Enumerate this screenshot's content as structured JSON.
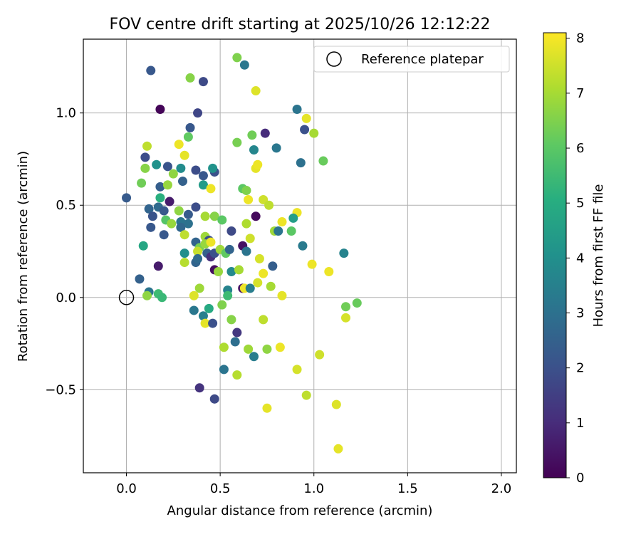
{
  "chart_data": {
    "type": "scatter",
    "title": "FOV centre drift starting at 2025/10/26 12:12:22",
    "xlabel": "Angular distance from reference (arcmin)",
    "ylabel": "Rotation from reference (arcmin)",
    "xlim": [
      -0.23,
      2.08
    ],
    "ylim": [
      -0.95,
      1.4
    ],
    "xticks": [
      0.0,
      0.5,
      1.0,
      1.5,
      2.0
    ],
    "xtick_labels": [
      "0.0",
      "0.5",
      "1.0",
      "1.5",
      "2.0"
    ],
    "yticks": [
      -0.5,
      0.0,
      0.5,
      1.0
    ],
    "ytick_labels": [
      "−0.5",
      "0.0",
      "0.5",
      "1.0"
    ],
    "grid": true,
    "legend": {
      "position": "top-right",
      "entries": [
        "Reference platepar"
      ]
    },
    "reference_point": {
      "x": 0.0,
      "y": 0.0
    },
    "colorbar": {
      "label": "Hours from first FF file",
      "min": 0,
      "max": 8.1,
      "ticks": [
        0,
        1,
        2,
        3,
        4,
        5,
        6,
        7,
        8
      ],
      "tick_labels": [
        "0",
        "1",
        "2",
        "3",
        "4",
        "5",
        "6",
        "7",
        "8"
      ],
      "colormap": "viridis"
    },
    "points": [
      {
        "x": 0.0,
        "y": 0.54,
        "h": 2.3
      },
      {
        "x": 0.13,
        "y": 1.23,
        "h": 2.2
      },
      {
        "x": 0.18,
        "y": 1.02,
        "h": 0.1
      },
      {
        "x": 0.41,
        "y": 1.17,
        "h": 1.8
      },
      {
        "x": 0.34,
        "y": 1.19,
        "h": 6.6
      },
      {
        "x": 0.59,
        "y": 1.3,
        "h": 6.5
      },
      {
        "x": 0.63,
        "y": 1.26,
        "h": 3.2
      },
      {
        "x": 0.69,
        "y": 1.12,
        "h": 7.7
      },
      {
        "x": 0.38,
        "y": 1.0,
        "h": 1.7
      },
      {
        "x": 0.91,
        "y": 1.02,
        "h": 3.1
      },
      {
        "x": 0.96,
        "y": 0.97,
        "h": 7.8
      },
      {
        "x": 0.95,
        "y": 0.91,
        "h": 2.0
      },
      {
        "x": 1.0,
        "y": 0.89,
        "h": 7.0
      },
      {
        "x": 0.74,
        "y": 0.89,
        "h": 1.0
      },
      {
        "x": 0.67,
        "y": 0.88,
        "h": 6.3
      },
      {
        "x": 0.34,
        "y": 0.92,
        "h": 2.2
      },
      {
        "x": 0.33,
        "y": 0.87,
        "h": 6.1
      },
      {
        "x": 0.59,
        "y": 0.84,
        "h": 6.4
      },
      {
        "x": 0.11,
        "y": 0.82,
        "h": 7.3
      },
      {
        "x": 0.28,
        "y": 0.83,
        "h": 7.9
      },
      {
        "x": 0.1,
        "y": 0.76,
        "h": 1.9
      },
      {
        "x": 0.31,
        "y": 0.77,
        "h": 7.8
      },
      {
        "x": 0.68,
        "y": 0.8,
        "h": 3.7
      },
      {
        "x": 0.8,
        "y": 0.81,
        "h": 3.2
      },
      {
        "x": 0.93,
        "y": 0.73,
        "h": 3.0
      },
      {
        "x": 1.05,
        "y": 0.74,
        "h": 6.2
      },
      {
        "x": 0.1,
        "y": 0.7,
        "h": 6.6
      },
      {
        "x": 0.16,
        "y": 0.72,
        "h": 4.1
      },
      {
        "x": 0.22,
        "y": 0.71,
        "h": 2.1
      },
      {
        "x": 0.29,
        "y": 0.7,
        "h": 3.9
      },
      {
        "x": 0.37,
        "y": 0.69,
        "h": 1.9
      },
      {
        "x": 0.47,
        "y": 0.68,
        "h": 2.0
      },
      {
        "x": 0.46,
        "y": 0.7,
        "h": 4.1
      },
      {
        "x": 0.25,
        "y": 0.67,
        "h": 6.7
      },
      {
        "x": 0.41,
        "y": 0.66,
        "h": 2.2
      },
      {
        "x": 0.69,
        "y": 0.7,
        "h": 7.8
      },
      {
        "x": 0.7,
        "y": 0.72,
        "h": 7.9
      },
      {
        "x": 0.08,
        "y": 0.62,
        "h": 6.3
      },
      {
        "x": 0.18,
        "y": 0.6,
        "h": 2.4
      },
      {
        "x": 0.22,
        "y": 0.61,
        "h": 6.8
      },
      {
        "x": 0.3,
        "y": 0.63,
        "h": 2.5
      },
      {
        "x": 0.41,
        "y": 0.61,
        "h": 4.4
      },
      {
        "x": 0.45,
        "y": 0.59,
        "h": 7.9
      },
      {
        "x": 0.62,
        "y": 0.59,
        "h": 6.0
      },
      {
        "x": 0.64,
        "y": 0.58,
        "h": 6.5
      },
      {
        "x": 0.18,
        "y": 0.54,
        "h": 5.1
      },
      {
        "x": 0.23,
        "y": 0.52,
        "h": 0.6
      },
      {
        "x": 0.65,
        "y": 0.53,
        "h": 7.9
      },
      {
        "x": 0.73,
        "y": 0.53,
        "h": 7.5
      },
      {
        "x": 0.76,
        "y": 0.5,
        "h": 7.3
      },
      {
        "x": 0.12,
        "y": 0.48,
        "h": 2.6
      },
      {
        "x": 0.17,
        "y": 0.49,
        "h": 2.8
      },
      {
        "x": 0.2,
        "y": 0.47,
        "h": 2.2
      },
      {
        "x": 0.28,
        "y": 0.47,
        "h": 6.7
      },
      {
        "x": 0.37,
        "y": 0.49,
        "h": 1.9
      },
      {
        "x": 0.33,
        "y": 0.45,
        "h": 2.3
      },
      {
        "x": 0.42,
        "y": 0.44,
        "h": 7.0
      },
      {
        "x": 0.47,
        "y": 0.44,
        "h": 6.6
      },
      {
        "x": 0.51,
        "y": 0.42,
        "h": 6.0
      },
      {
        "x": 0.69,
        "y": 0.44,
        "h": 0.2
      },
      {
        "x": 0.83,
        "y": 0.41,
        "h": 7.9
      },
      {
        "x": 0.91,
        "y": 0.46,
        "h": 7.9
      },
      {
        "x": 0.14,
        "y": 0.44,
        "h": 2.1
      },
      {
        "x": 0.21,
        "y": 0.42,
        "h": 5.9
      },
      {
        "x": 0.24,
        "y": 0.4,
        "h": 6.8
      },
      {
        "x": 0.29,
        "y": 0.41,
        "h": 3.1
      },
      {
        "x": 0.33,
        "y": 0.4,
        "h": 3.0
      },
      {
        "x": 0.64,
        "y": 0.4,
        "h": 7.1
      },
      {
        "x": 0.89,
        "y": 0.43,
        "h": 4.5
      },
      {
        "x": 0.13,
        "y": 0.38,
        "h": 2.2
      },
      {
        "x": 0.2,
        "y": 0.34,
        "h": 2.2
      },
      {
        "x": 0.29,
        "y": 0.38,
        "h": 2.7
      },
      {
        "x": 0.31,
        "y": 0.34,
        "h": 7.3
      },
      {
        "x": 0.42,
        "y": 0.33,
        "h": 6.9
      },
      {
        "x": 0.44,
        "y": 0.31,
        "h": 2.0
      },
      {
        "x": 0.56,
        "y": 0.36,
        "h": 1.8
      },
      {
        "x": 0.66,
        "y": 0.32,
        "h": 7.5
      },
      {
        "x": 0.79,
        "y": 0.36,
        "h": 6.9
      },
      {
        "x": 0.81,
        "y": 0.36,
        "h": 3.1
      },
      {
        "x": 0.88,
        "y": 0.36,
        "h": 6.0
      },
      {
        "x": 0.94,
        "y": 0.28,
        "h": 3.3
      },
      {
        "x": 0.09,
        "y": 0.28,
        "h": 4.8
      },
      {
        "x": 0.37,
        "y": 0.3,
        "h": 2.6
      },
      {
        "x": 0.39,
        "y": 0.27,
        "h": 6.4
      },
      {
        "x": 0.42,
        "y": 0.29,
        "h": 6.8
      },
      {
        "x": 0.45,
        "y": 0.3,
        "h": 7.9
      },
      {
        "x": 0.62,
        "y": 0.28,
        "h": 0.4
      },
      {
        "x": 0.31,
        "y": 0.24,
        "h": 4.0
      },
      {
        "x": 0.38,
        "y": 0.25,
        "h": 7.4
      },
      {
        "x": 0.43,
        "y": 0.24,
        "h": 2.5
      },
      {
        "x": 0.45,
        "y": 0.22,
        "h": 1.1
      },
      {
        "x": 0.47,
        "y": 0.24,
        "h": 2.0
      },
      {
        "x": 0.5,
        "y": 0.26,
        "h": 6.9
      },
      {
        "x": 0.53,
        "y": 0.24,
        "h": 6.1
      },
      {
        "x": 0.55,
        "y": 0.26,
        "h": 2.6
      },
      {
        "x": 0.64,
        "y": 0.25,
        "h": 3.1
      },
      {
        "x": 1.16,
        "y": 0.24,
        "h": 3.6
      },
      {
        "x": 0.31,
        "y": 0.19,
        "h": 7.2
      },
      {
        "x": 0.37,
        "y": 0.19,
        "h": 2.6
      },
      {
        "x": 0.38,
        "y": 0.21,
        "h": 2.8
      },
      {
        "x": 0.71,
        "y": 0.21,
        "h": 7.6
      },
      {
        "x": 0.78,
        "y": 0.17,
        "h": 2.4
      },
      {
        "x": 0.99,
        "y": 0.18,
        "h": 7.9
      },
      {
        "x": 0.17,
        "y": 0.17,
        "h": 0.6
      },
      {
        "x": 0.47,
        "y": 0.15,
        "h": 0.3
      },
      {
        "x": 0.49,
        "y": 0.14,
        "h": 6.8
      },
      {
        "x": 0.56,
        "y": 0.14,
        "h": 3.8
      },
      {
        "x": 0.6,
        "y": 0.15,
        "h": 7.0
      },
      {
        "x": 0.73,
        "y": 0.13,
        "h": 7.9
      },
      {
        "x": 1.08,
        "y": 0.14,
        "h": 7.9
      },
      {
        "x": 0.07,
        "y": 0.1,
        "h": 2.5
      },
      {
        "x": 0.7,
        "y": 0.08,
        "h": 7.6
      },
      {
        "x": 0.77,
        "y": 0.06,
        "h": 7.0
      },
      {
        "x": 0.62,
        "y": 0.05,
        "h": 0.4
      },
      {
        "x": 0.63,
        "y": 0.05,
        "h": 7.9
      },
      {
        "x": 0.39,
        "y": 0.05,
        "h": 6.9
      },
      {
        "x": 0.54,
        "y": 0.04,
        "h": 3.6
      },
      {
        "x": 0.66,
        "y": 0.05,
        "h": 3.4
      },
      {
        "x": 0.12,
        "y": 0.03,
        "h": 3.1
      },
      {
        "x": 0.17,
        "y": 0.02,
        "h": 5.5
      },
      {
        "x": 0.11,
        "y": 0.01,
        "h": 6.7
      },
      {
        "x": 0.19,
        "y": 0.0,
        "h": 5.4
      },
      {
        "x": 0.36,
        "y": 0.01,
        "h": 7.7
      },
      {
        "x": 0.54,
        "y": 0.01,
        "h": 5.5
      },
      {
        "x": 0.83,
        "y": 0.01,
        "h": 7.8
      },
      {
        "x": 1.23,
        "y": -0.03,
        "h": 6.2
      },
      {
        "x": 1.17,
        "y": -0.05,
        "h": 6.3
      },
      {
        "x": 0.36,
        "y": -0.07,
        "h": 3.2
      },
      {
        "x": 0.44,
        "y": -0.06,
        "h": 4.9
      },
      {
        "x": 0.51,
        "y": -0.04,
        "h": 6.5
      },
      {
        "x": 0.41,
        "y": -0.1,
        "h": 3.5
      },
      {
        "x": 0.56,
        "y": -0.12,
        "h": 6.6
      },
      {
        "x": 0.73,
        "y": -0.12,
        "h": 7.3
      },
      {
        "x": 1.17,
        "y": -0.11,
        "h": 7.6
      },
      {
        "x": 0.42,
        "y": -0.14,
        "h": 7.8
      },
      {
        "x": 0.46,
        "y": -0.14,
        "h": 2.0
      },
      {
        "x": 0.59,
        "y": -0.19,
        "h": 1.3
      },
      {
        "x": 0.58,
        "y": -0.24,
        "h": 2.9
      },
      {
        "x": 0.52,
        "y": -0.27,
        "h": 7.1
      },
      {
        "x": 0.65,
        "y": -0.28,
        "h": 6.9
      },
      {
        "x": 0.75,
        "y": -0.28,
        "h": 6.7
      },
      {
        "x": 0.82,
        "y": -0.27,
        "h": 7.9
      },
      {
        "x": 0.68,
        "y": -0.32,
        "h": 3.4
      },
      {
        "x": 1.03,
        "y": -0.31,
        "h": 7.5
      },
      {
        "x": 0.52,
        "y": -0.39,
        "h": 3.1
      },
      {
        "x": 0.59,
        "y": -0.42,
        "h": 7.2
      },
      {
        "x": 0.91,
        "y": -0.39,
        "h": 7.6
      },
      {
        "x": 0.39,
        "y": -0.49,
        "h": 1.2
      },
      {
        "x": 0.47,
        "y": -0.55,
        "h": 1.8
      },
      {
        "x": 0.96,
        "y": -0.53,
        "h": 7.3
      },
      {
        "x": 0.75,
        "y": -0.6,
        "h": 7.8
      },
      {
        "x": 1.12,
        "y": -0.58,
        "h": 7.7
      },
      {
        "x": 1.13,
        "y": -0.82,
        "h": 7.8
      }
    ]
  }
}
